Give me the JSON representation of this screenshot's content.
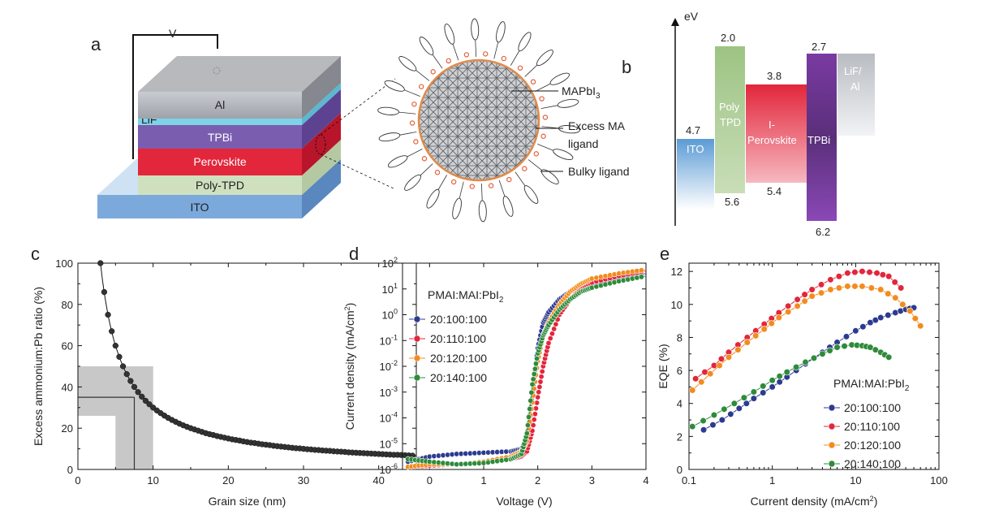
{
  "panels": {
    "a": {
      "label": "a",
      "voltage": "V",
      "layers": [
        "Al",
        "LiF",
        "TPBi",
        "Perovskite",
        "Poly-TPD",
        "ITO"
      ],
      "annotations": [
        "MAPbI",
        "3",
        "Excess MA",
        "ligand",
        "Bulky ligand"
      ]
    },
    "b": {
      "label": "b",
      "axis": "eV",
      "blocks": [
        {
          "name": "ITO",
          "top": "4.7",
          "bottom": "",
          "color": "#5b9bd5"
        },
        {
          "name1": "Poly",
          "name2": "TPD",
          "top": "2.0",
          "bottom": "5.6",
          "color": "#9dc383"
        },
        {
          "name1": "I-",
          "name2": "Perovskite",
          "top": "3.8",
          "bottom": "5.4",
          "color": "#e2263b"
        },
        {
          "name": "TPBi",
          "top": "2.7",
          "bottom": "6.2",
          "color": "#7a3aa2"
        },
        {
          "name1": "LiF/",
          "name2": "Al",
          "top": "",
          "bottom": "",
          "color": "#b8bcc2"
        }
      ]
    },
    "c": {
      "label": "c"
    },
    "d": {
      "label": "d"
    },
    "e": {
      "label": "e"
    }
  },
  "chart_data": [
    {
      "panel": "c",
      "type": "scatter",
      "xlabel": "Grain size (nm)",
      "ylabel": "Excess ammonium:Pb ratio (%)",
      "xlim": [
        0,
        45
      ],
      "ylim": [
        0,
        100
      ],
      "xticks": [
        "0",
        "10",
        "20",
        "30",
        "40"
      ],
      "yticks": [
        "0",
        "20",
        "40",
        "60",
        "80",
        "100"
      ],
      "x": [
        3,
        3.5,
        4,
        4.5,
        5,
        5.5,
        6,
        6.5,
        7,
        7.5,
        8,
        8.5,
        9,
        9.5,
        10,
        10.5,
        11,
        11.5,
        12,
        12.5,
        13,
        13.5,
        14,
        14.5,
        15,
        15.5,
        16,
        16.5,
        17,
        17.5,
        18,
        18.5,
        19,
        19.5,
        20,
        20.5,
        21,
        21.5,
        22,
        22.5,
        23,
        23.5,
        24,
        24.5,
        25,
        25.5,
        26,
        26.5,
        27,
        27.5,
        28,
        28.5,
        29,
        29.5,
        30,
        30.5,
        31,
        31.5,
        32,
        32.5,
        33,
        33.5,
        34,
        34.5,
        35,
        35.5,
        36,
        36.5,
        37,
        37.5,
        38,
        38.5,
        39,
        39.5,
        40,
        40.5,
        41,
        41.5,
        42,
        42.5,
        43,
        43.5,
        44,
        44.5
      ],
      "y": [
        100,
        86,
        75,
        67,
        60,
        54.6,
        50,
        46.2,
        42.9,
        40,
        37.5,
        35.3,
        33.3,
        31.6,
        30,
        28.6,
        27.3,
        26.1,
        25,
        24,
        23.1,
        22.2,
        21.4,
        20.7,
        20,
        19.4,
        18.8,
        18.2,
        17.6,
        17.1,
        16.7,
        16.2,
        15.8,
        15.4,
        15,
        14.6,
        14.3,
        14,
        13.6,
        13.3,
        13,
        12.8,
        12.5,
        12.2,
        12,
        11.8,
        11.5,
        11.3,
        11.1,
        10.9,
        10.7,
        10.5,
        10.3,
        10.2,
        10,
        9.8,
        9.7,
        9.5,
        9.4,
        9.2,
        9.1,
        9,
        8.8,
        8.7,
        8.6,
        8.5,
        8.3,
        8.2,
        8.1,
        8,
        7.9,
        7.8,
        7.7,
        7.6,
        7.5,
        7.4,
        7.3,
        7.2,
        7.1,
        7.1,
        7,
        6.9,
        6.8,
        6.7
      ],
      "highlight": {
        "xmin": 5,
        "xmax": 10,
        "ymin": 26,
        "ymax": 50,
        "x0": 7.5,
        "y0": 35
      }
    },
    {
      "panel": "d",
      "type": "line",
      "xlabel": "Voltage (V)",
      "ylabel": "Current density (mA/cm",
      "ylabel_sup": "2",
      "ylabel_end": ")",
      "xlim": [
        -0.5,
        4
      ],
      "ylim_log10": [
        -6,
        2
      ],
      "xticks": [
        "0",
        "1",
        "2",
        "3",
        "4"
      ],
      "yticks_exp": [
        "-6",
        "-5",
        "-4",
        "-3",
        "-2",
        "-1",
        "0",
        "1",
        "2"
      ],
      "legend_title": "PMAI:MAI:PbI",
      "legend_title_sub": "2",
      "series": [
        {
          "name": "20:100:100",
          "color": "#2c3a8f",
          "x": [
            -0.4,
            0,
            0.5,
            1,
            1.5,
            1.7,
            1.8,
            1.9,
            2,
            2.1,
            2.2,
            2.4,
            2.6,
            2.8,
            3,
            3.5,
            4
          ],
          "log10y": [
            -5.7,
            -5.5,
            -5.4,
            -5.35,
            -5.3,
            -5.2,
            -4.8,
            -3,
            -1.3,
            -0.3,
            0.1,
            0.6,
            0.9,
            1.1,
            1.2,
            1.4,
            1.6
          ]
        },
        {
          "name": "20:110:100",
          "color": "#e2263b",
          "x": [
            -0.4,
            0,
            0.5,
            1,
            1.5,
            1.7,
            1.8,
            1.9,
            2,
            2.1,
            2.2,
            2.4,
            2.6,
            2.8,
            3,
            3.5,
            4
          ],
          "log10y": [
            -5.9,
            -5.85,
            -5.8,
            -5.7,
            -5.6,
            -5.5,
            -5.3,
            -4.5,
            -3.2,
            -2,
            -1.1,
            0,
            0.6,
            1,
            1.25,
            1.5,
            1.7
          ]
        },
        {
          "name": "20:120:100",
          "color": "#f28c1e",
          "x": [
            -0.4,
            0,
            0.5,
            1,
            1.5,
            1.7,
            1.8,
            1.9,
            2,
            2.1,
            2.2,
            2.4,
            2.6,
            2.8,
            3,
            3.5,
            4
          ],
          "log10y": [
            -5.9,
            -5.8,
            -5.8,
            -5.7,
            -5.5,
            -5.3,
            -4.9,
            -3.4,
            -1.8,
            -0.8,
            -0.3,
            0.4,
            0.9,
            1.2,
            1.4,
            1.6,
            1.75
          ]
        },
        {
          "name": "20:140:100",
          "color": "#2e8b3a",
          "x": [
            -0.4,
            0,
            0.5,
            1,
            1.5,
            1.7,
            1.8,
            1.9,
            2,
            2.1,
            2.2,
            2.4,
            2.6,
            2.8,
            3,
            3.5,
            4
          ],
          "log10y": [
            -5.6,
            -5.7,
            -5.8,
            -5.75,
            -5.6,
            -5.4,
            -4.6,
            -2.7,
            -1.5,
            -0.8,
            -0.4,
            0.2,
            0.6,
            0.9,
            1.05,
            1.3,
            1.5
          ]
        }
      ]
    },
    {
      "panel": "e",
      "type": "line",
      "xlabel": "Current density (mA/cm",
      "xlabel_sup": "2",
      "xlabel_end": ")",
      "ylabel": "EQE (%)",
      "xlim_log10": [
        -1,
        2
      ],
      "ylim": [
        0,
        12.5
      ],
      "xticks": [
        "0.1",
        "1",
        "10",
        "100"
      ],
      "yticks": [
        "0",
        "2",
        "4",
        "6",
        "8",
        "10",
        "12"
      ],
      "legend_title": "PMAI:MAI:PbI",
      "legend_title_sub": "2",
      "series": [
        {
          "name": "20:100:100",
          "color": "#2c3a8f",
          "x": [
            0.15,
            0.25,
            0.4,
            0.6,
            1,
            1.5,
            2.5,
            4,
            6,
            10,
            15,
            20,
            30,
            40,
            50
          ],
          "y": [
            2.4,
            3,
            3.7,
            4.3,
            5,
            5.6,
            6.4,
            7.1,
            7.7,
            8.4,
            8.9,
            9.2,
            9.5,
            9.7,
            9.8
          ]
        },
        {
          "name": "20:110:100",
          "color": "#e2263b",
          "x": [
            0.12,
            0.2,
            0.3,
            0.5,
            0.8,
            1.2,
            2,
            3,
            5,
            8,
            12,
            18,
            25,
            35
          ],
          "y": [
            5.5,
            6.3,
            7.1,
            8,
            8.8,
            9.5,
            10.3,
            10.9,
            11.5,
            11.9,
            12,
            11.9,
            11.7,
            11
          ]
        },
        {
          "name": "20:120:100",
          "color": "#f28c1e",
          "x": [
            0.11,
            0.18,
            0.3,
            0.5,
            0.8,
            1.2,
            2,
            3,
            5,
            8,
            12,
            20,
            30,
            45,
            60
          ],
          "y": [
            4.8,
            5.8,
            6.8,
            7.7,
            8.5,
            9.2,
            9.9,
            10.5,
            10.9,
            11.1,
            11.1,
            10.9,
            10.4,
            9.6,
            8.7
          ]
        },
        {
          "name": "20:140:100",
          "color": "#2e8b3a",
          "x": [
            0.11,
            0.2,
            0.35,
            0.6,
            1,
            1.5,
            2.5,
            4,
            6,
            9,
            12,
            15,
            20,
            25
          ],
          "y": [
            2.6,
            3.3,
            4,
            4.7,
            5.4,
            5.9,
            6.5,
            7,
            7.4,
            7.55,
            7.5,
            7.4,
            7.1,
            6.8
          ]
        }
      ]
    }
  ]
}
